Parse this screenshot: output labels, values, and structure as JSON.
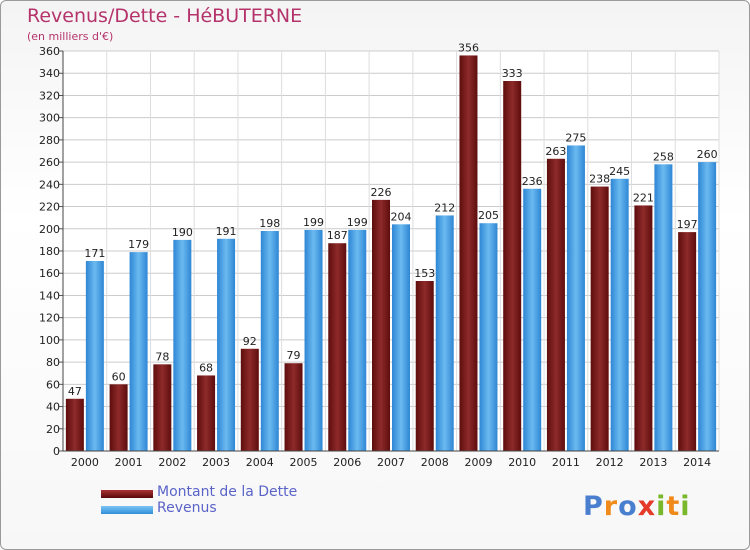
{
  "header": {
    "title": "Revenus/Dette - HéBUTERNE",
    "subtitle": "(en milliers d'€)"
  },
  "chart_data": {
    "type": "bar",
    "title": "Revenus/Dette - HéBUTERNE",
    "ylabel": "(en milliers d'€)",
    "xlabel": "",
    "ylim": [
      0,
      360
    ],
    "ytick_step": 20,
    "grid": true,
    "categories": [
      "2000",
      "2001",
      "2002",
      "2003",
      "2004",
      "2005",
      "2006",
      "2007",
      "2008",
      "2009",
      "2010",
      "2011",
      "2012",
      "2013",
      "2014"
    ],
    "series": [
      {
        "name": "Montant de la Dette",
        "color": "#7a1a1a",
        "values": [
          47,
          60,
          78,
          68,
          92,
          79,
          187,
          226,
          153,
          356,
          333,
          263,
          238,
          221,
          197
        ]
      },
      {
        "name": "Revenus",
        "color": "#4aa3e6",
        "values": [
          171,
          179,
          190,
          191,
          198,
          199,
          199,
          204,
          212,
          205,
          236,
          275,
          245,
          258,
          260
        ]
      }
    ],
    "legend_position": "bottom-left"
  },
  "legend": {
    "items": [
      {
        "label": "Montant de la Dette"
      },
      {
        "label": "Revenus"
      }
    ]
  },
  "logo": {
    "text": "Proxiti",
    "letters": [
      {
        "ch": "P",
        "color": "#4a7fd0"
      },
      {
        "ch": "r",
        "color": "#f08a1a"
      },
      {
        "ch": "o",
        "color": "#4a7fd0"
      },
      {
        "ch": "x",
        "color": "#e33a2a"
      },
      {
        "ch": "i",
        "color": "#78b82a"
      },
      {
        "ch": "t",
        "color": "#f08a1a"
      },
      {
        "ch": "i",
        "color": "#78b82a"
      }
    ]
  }
}
